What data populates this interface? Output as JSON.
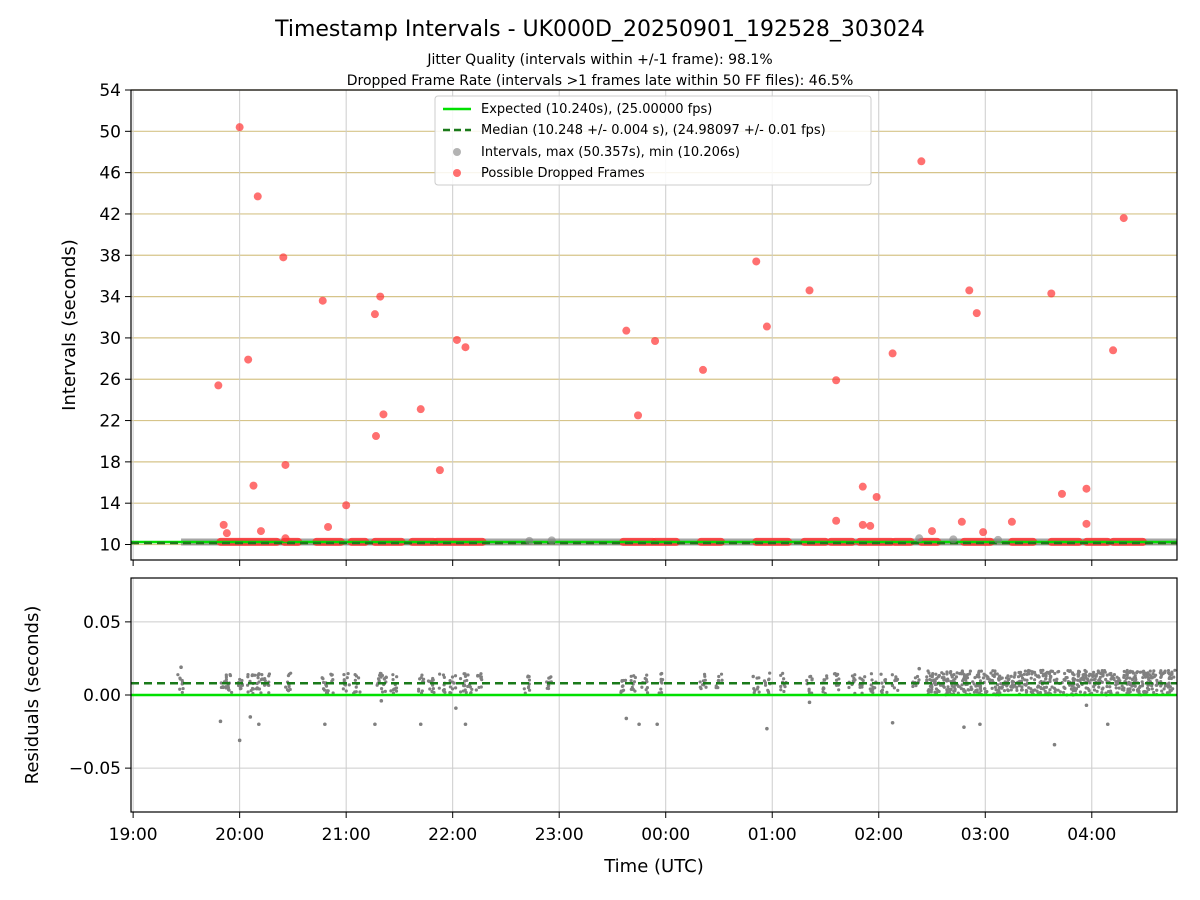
{
  "header": {
    "title": "Timestamp Intervals - UK000D_20250901_192528_303024",
    "subtitle_1": "Jitter Quality (intervals within +/-1 frame): 98.1%",
    "subtitle_2": "Dropped Frame Rate (intervals >1 frames late within 50 FF files): 46.5%"
  },
  "legend": {
    "expected": "Expected (10.240s), (25.00000 fps)",
    "median": "Median (10.248 +/- 0.004 s), (24.98097 +/- 0.01 fps)",
    "intervals": "Intervals, max (50.357s), min (10.206s)",
    "dropped": "Possible Dropped Frames"
  },
  "colors": {
    "expected": "#00e000",
    "median": "#1a7a1a",
    "intervals": "#808080",
    "dropped": "#ff3333",
    "hgrid_top": "#d6c48a",
    "vgrid": "#cccccc"
  },
  "chart_data": [
    {
      "type": "scatter",
      "ylabel": "Intervals (seconds)",
      "ylim": [
        8.5,
        54
      ],
      "xlim": [
        18.98,
        28.8
      ],
      "yticks": [
        "10",
        "14",
        "18",
        "22",
        "26",
        "30",
        "34",
        "38",
        "42",
        "46",
        "50",
        "54"
      ],
      "grid": true,
      "legend_position": "top-center",
      "expected_interval": 10.24,
      "median_interval": 10.248,
      "series": [
        {
          "name": "Possible Dropped Frames",
          "points": [
            [
              19.8,
              25.4
            ],
            [
              19.85,
              11.9
            ],
            [
              19.88,
              11.1
            ],
            [
              20.0,
              50.4
            ],
            [
              20.08,
              27.9
            ],
            [
              20.13,
              15.7
            ],
            [
              20.17,
              43.7
            ],
            [
              20.2,
              11.3
            ],
            [
              20.41,
              37.8
            ],
            [
              20.43,
              17.7
            ],
            [
              20.43,
              10.6
            ],
            [
              20.78,
              33.6
            ],
            [
              20.83,
              11.7
            ],
            [
              21.0,
              13.8
            ],
            [
              21.27,
              32.3
            ],
            [
              21.28,
              20.5
            ],
            [
              21.32,
              34.0
            ],
            [
              21.35,
              22.6
            ],
            [
              21.7,
              23.1
            ],
            [
              21.88,
              17.2
            ],
            [
              22.04,
              29.8
            ],
            [
              22.12,
              29.1
            ],
            [
              23.63,
              30.7
            ],
            [
              23.74,
              22.5
            ],
            [
              23.9,
              29.7
            ],
            [
              24.35,
              26.9
            ],
            [
              24.85,
              37.4
            ],
            [
              24.95,
              31.1
            ],
            [
              25.35,
              34.6
            ],
            [
              25.6,
              25.9
            ],
            [
              25.6,
              12.3
            ],
            [
              25.85,
              15.6
            ],
            [
              25.85,
              11.9
            ],
            [
              25.92,
              11.8
            ],
            [
              25.98,
              14.6
            ],
            [
              26.13,
              28.5
            ],
            [
              26.4,
              47.1
            ],
            [
              26.5,
              11.3
            ],
            [
              26.78,
              12.2
            ],
            [
              26.85,
              34.6
            ],
            [
              26.92,
              32.4
            ],
            [
              26.98,
              11.2
            ],
            [
              27.25,
              12.2
            ],
            [
              27.62,
              34.3
            ],
            [
              27.72,
              14.9
            ],
            [
              27.95,
              15.4
            ],
            [
              27.95,
              12.0
            ],
            [
              28.2,
              28.8
            ],
            [
              28.3,
              41.6
            ]
          ]
        }
      ],
      "dropped_baseline_segments": [
        [
          19.82,
          20.35
        ],
        [
          20.42,
          20.55
        ],
        [
          20.72,
          20.95
        ],
        [
          21.05,
          21.18
        ],
        [
          21.27,
          21.52
        ],
        [
          21.62,
          21.82
        ],
        [
          21.85,
          22.28
        ],
        [
          23.6,
          23.88
        ],
        [
          23.9,
          24.1
        ],
        [
          24.33,
          24.52
        ],
        [
          24.85,
          25.15
        ],
        [
          25.3,
          25.5
        ],
        [
          25.55,
          25.75
        ],
        [
          25.82,
          26.12
        ],
        [
          26.15,
          26.3
        ],
        [
          26.4,
          26.55
        ],
        [
          26.8,
          27.05
        ],
        [
          27.25,
          27.45
        ],
        [
          27.62,
          27.88
        ],
        [
          27.95,
          28.15
        ],
        [
          28.2,
          28.48
        ]
      ]
    },
    {
      "type": "scatter",
      "xlabel": "Time (UTC)",
      "ylabel": "Residuals (seconds)",
      "ylim": [
        -0.08,
        0.08
      ],
      "xlim": [
        18.98,
        28.8
      ],
      "yticks": [
        "0.05",
        "0.00",
        "−0.05"
      ],
      "xticks": [
        "19:00",
        "20:00",
        "21:00",
        "22:00",
        "23:00",
        "00:00",
        "01:00",
        "02:00",
        "03:00",
        "04:00"
      ],
      "grid": true,
      "expected_residual": 0.0,
      "median_residual": 0.008,
      "outliers": [
        [
          19.45,
          0.019
        ],
        [
          19.82,
          -0.018
        ],
        [
          20.0,
          -0.031
        ],
        [
          20.1,
          -0.015
        ],
        [
          20.18,
          -0.02
        ],
        [
          20.8,
          -0.02
        ],
        [
          21.27,
          -0.02
        ],
        [
          21.33,
          -0.004
        ],
        [
          21.7,
          -0.02
        ],
        [
          22.03,
          -0.009
        ],
        [
          22.12,
          -0.02
        ],
        [
          23.63,
          -0.016
        ],
        [
          23.75,
          -0.02
        ],
        [
          23.92,
          -0.02
        ],
        [
          24.95,
          -0.023
        ],
        [
          25.35,
          -0.005
        ],
        [
          26.13,
          -0.019
        ],
        [
          26.38,
          0.018
        ],
        [
          26.8,
          -0.022
        ],
        [
          26.95,
          -0.02
        ],
        [
          27.65,
          -0.034
        ],
        [
          27.95,
          -0.007
        ],
        [
          28.15,
          -0.02
        ]
      ]
    }
  ]
}
